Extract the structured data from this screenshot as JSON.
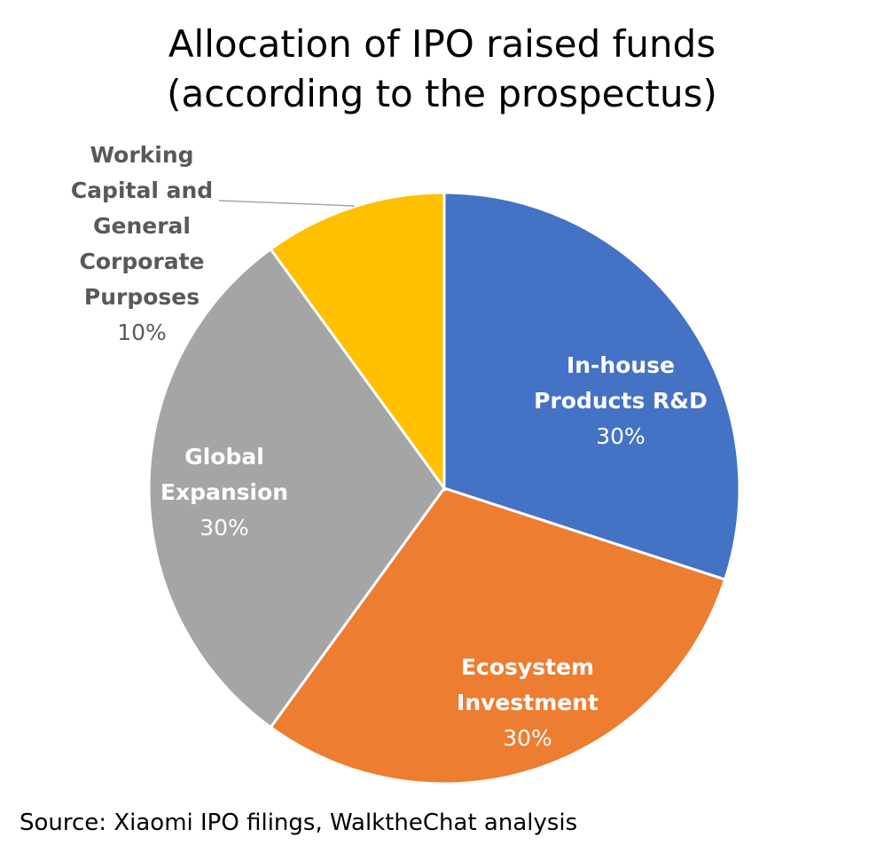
{
  "chart_data": {
    "type": "pie",
    "title_line1": "Allocation of IPO raised funds",
    "title_line2": "(according to the prospectus)",
    "slices": [
      {
        "name_lines": [
          "In-house",
          "Products R&D"
        ],
        "value": 30,
        "label": "30%",
        "color": "#4472C4",
        "label_color": "#ffffff"
      },
      {
        "name_lines": [
          "Ecosystem",
          "Investment"
        ],
        "value": 30,
        "label": "30%",
        "color": "#ED7D31",
        "label_color": "#ffffff"
      },
      {
        "name_lines": [
          "Global",
          "Expansion"
        ],
        "value": 30,
        "label": "30%",
        "color": "#A5A5A5",
        "label_color": "#ffffff"
      },
      {
        "name_lines": [
          "Working",
          "Capital and",
          "General",
          "Corporate",
          "Purposes"
        ],
        "value": 10,
        "label": "10%",
        "color": "#FFC000",
        "label_color": "#595959"
      }
    ],
    "source": "Source: Xiaomi IPO filings, WalktheChat analysis"
  }
}
